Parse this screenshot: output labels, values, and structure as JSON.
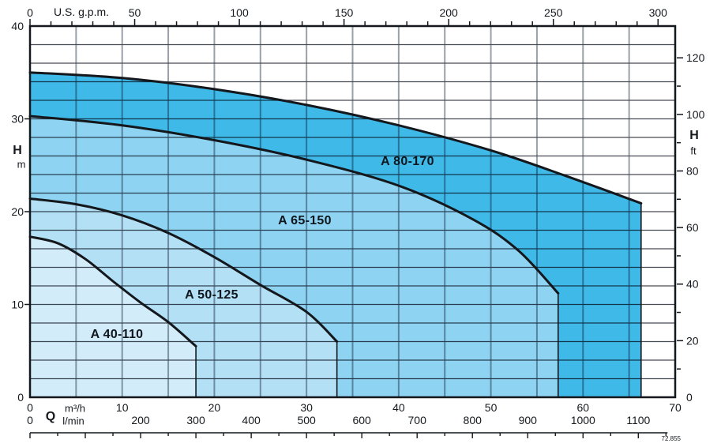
{
  "footnote": "72.855",
  "chart_data": {
    "type": "area",
    "title": "",
    "axes": {
      "top": {
        "unit": "U.S. g.p.m.",
        "labels": [
          0,
          50,
          100,
          150,
          200,
          250,
          300
        ],
        "minor_tick_step": 10,
        "max_tick": 300,
        "gpm_per_m3h": 4.4029
      },
      "left": {
        "symbol": "H",
        "unit": "m",
        "min": 0,
        "max": 40,
        "labels": [
          0,
          10,
          20,
          30,
          40
        ],
        "grid_step": 2
      },
      "right": {
        "symbol": "H",
        "unit": "ft",
        "labels": [
          0,
          20,
          40,
          60,
          80,
          100,
          120
        ],
        "minor_tick_step": 10,
        "max_tick": 120,
        "ft_per_m": 3.2808
      },
      "bottom_primary": {
        "symbol": "Q",
        "unit": "m³/h",
        "min": 0,
        "max": 70,
        "labels": [
          0,
          10,
          20,
          30,
          40,
          50,
          60,
          70
        ],
        "grid_step": 5
      },
      "bottom_secondary": {
        "unit": "l/min",
        "labels": [
          0,
          200,
          300,
          400,
          500,
          600,
          700,
          800,
          900,
          1000,
          1100
        ],
        "minor_tick_step": 50,
        "max_tick": 1150,
        "lmin_per_m3h": 16.667
      }
    },
    "series": [
      {
        "name": "A 40-110",
        "color": "#d3ecfa",
        "points": [
          [
            0,
            17.3
          ],
          [
            3,
            16.6
          ],
          [
            6,
            14.9
          ],
          [
            9,
            12.5
          ],
          [
            12,
            10.2
          ],
          [
            15,
            8.1
          ],
          [
            18,
            5.5
          ]
        ]
      },
      {
        "name": "A 50-125",
        "color": "#b4e0f6",
        "points": [
          [
            0,
            21.4
          ],
          [
            5,
            20.8
          ],
          [
            10,
            19.6
          ],
          [
            15,
            17.7
          ],
          [
            20,
            15.1
          ],
          [
            25,
            12.1
          ],
          [
            30,
            9.2
          ],
          [
            33.3,
            6.0
          ]
        ]
      },
      {
        "name": "A 65-150",
        "color": "#8ed3f1",
        "points": [
          [
            0,
            30.3
          ],
          [
            10,
            29.3
          ],
          [
            20,
            27.7
          ],
          [
            30,
            25.6
          ],
          [
            40,
            22.8
          ],
          [
            48,
            19.2
          ],
          [
            53,
            15.8
          ],
          [
            57.3,
            11.2
          ]
        ]
      },
      {
        "name": "A 80-170",
        "color": "#3fb9e8",
        "points": [
          [
            0,
            35.0
          ],
          [
            10,
            34.4
          ],
          [
            20,
            33.2
          ],
          [
            30,
            31.5
          ],
          [
            40,
            29.3
          ],
          [
            50,
            26.6
          ],
          [
            58,
            23.9
          ],
          [
            66.3,
            20.9
          ]
        ]
      }
    ],
    "grid": true,
    "legend_position": "inline-labels"
  }
}
